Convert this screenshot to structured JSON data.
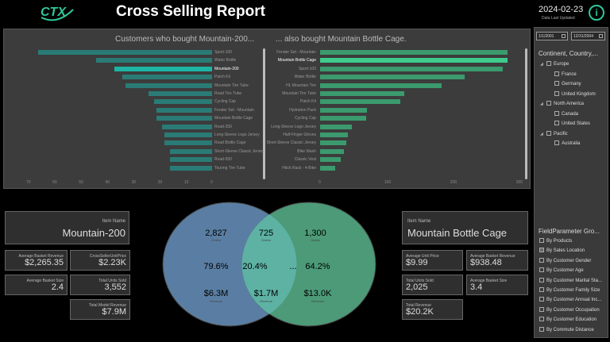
{
  "header": {
    "logo": "CTX",
    "title": "Cross Selling Report",
    "date": "2024-02-23",
    "date_sub": "Data Last Updated",
    "info_icon": "i"
  },
  "left_chart": {
    "title": "Customers who bought Mountain-200...",
    "categories": [
      "Sport-100",
      "Water Bottle",
      "Mountain-200",
      "Patch Kit",
      "Mountain Tire Tube",
      "Road Tire Tube",
      "Cycling Cap",
      "Fender Set - Mountain",
      "Mountain Bottle Cage",
      "Road-250",
      "Long-Sleeve Logo Jersey",
      "Road Bottle Cage",
      "Short-Sleeve Classic Jersey",
      "Road-550",
      "Touring Tire Tube"
    ],
    "values": [
      66,
      44,
      37,
      34,
      33,
      24,
      22,
      21,
      21,
      19,
      18,
      18,
      16,
      16,
      16
    ],
    "highlight": 2,
    "ticks": [
      "70",
      "60",
      "50",
      "40",
      "30",
      "20",
      "10",
      "0"
    ]
  },
  "right_chart": {
    "title": "... also bought Mountain Bottle Cage.",
    "categories": [
      "Fender Set - Mountain",
      "Mountain Bottle Cage",
      "Sport-100",
      "Water Bottle",
      "HL Mountain Tire",
      "Mountain Tire Tube",
      "Patch Kit",
      "Hydration Pack",
      "Cycling Cap",
      "Long-Sleeve Logo Jersey",
      "Half-Finger Gloves",
      "Short-Sleeve Classic Jersey",
      "Bike Wash",
      "Classic Vest",
      "Hitch Rack - 4-Bike"
    ],
    "values": [
      285,
      285,
      277,
      220,
      185,
      128,
      122,
      71,
      70,
      48,
      42,
      40,
      36,
      31,
      23
    ],
    "highlight": 1,
    "ticks": [
      "0",
      "100",
      "200",
      "300"
    ]
  },
  "left_item": {
    "label": "Item Name",
    "value": "Mountain-200"
  },
  "left_cards": [
    {
      "label": "Average Basket Revenue",
      "value": "$2,265.35"
    },
    {
      "label": "CrossSellerUnitPrice",
      "value": "$2.23K"
    },
    {
      "label": "Average Basket Size",
      "value": "2.4"
    },
    {
      "label": "Total Units Sold",
      "value": "3,552"
    },
    {
      "label": "Total Model Revenue",
      "value": "$7.9M"
    }
  ],
  "venn": {
    "left_count": "2,827",
    "left_count_sub": "Orders",
    "mid_count": "725",
    "mid_count_sub": "Orders",
    "right_count": "1,300",
    "right_count_sub": "Orders",
    "left_pct": "79.6%",
    "mid_pct": "20.4%",
    "right_pct": "64.2%",
    "right_extra": "...",
    "left_rev": "$6.3M",
    "left_rev_sub": "Revenue",
    "mid_rev": "$1.7M",
    "mid_rev_sub": "Revenue",
    "right_rev": "$13.0K",
    "right_rev_sub": "Revenue"
  },
  "right_item": {
    "label": "Item Name",
    "value": "Mountain Bottle Cage"
  },
  "right_cards": [
    {
      "label": "Average Unit Price",
      "value": "$9.99"
    },
    {
      "label": "Average Basket Revenue",
      "value": "$938.48"
    },
    {
      "label": "Total Units Sold",
      "value": "2,025"
    },
    {
      "label": "Average Basket Size",
      "value": "3.4"
    },
    {
      "label": "Total Revenue",
      "value": "$20.2K"
    }
  ],
  "sidebar": {
    "date_from": "1/1/2001",
    "date_to": "12/31/2004",
    "tree_title": "Continent, Country,...",
    "tree": [
      "Europe",
      "France",
      "Germany",
      "United Kingdom",
      "North America",
      "Canada",
      "United States",
      "Pacific",
      "Australia"
    ],
    "param_title": "FieldParameter Gro...",
    "params": [
      "By Products",
      "By Sales Location",
      "By Customer Gender",
      "By Customer Age",
      "By Customer Marital Sta...",
      "By Customer Family Size",
      "By Customer Annual Inc...",
      "By Customer Occupation",
      "By Customer Education",
      "By Commute Distance"
    ],
    "param_selected": 1
  },
  "colors": {
    "bar": "#2a7b76",
    "bar_hl": "#1fb3a4",
    "bar_r": "#3b9a6e",
    "bar_r_hl": "#3ecb8d",
    "venn_left": "#5a7ea3",
    "venn_right": "#4c9a78",
    "venn_mid": "#5db2a3",
    "accent": "#2ec89a"
  }
}
